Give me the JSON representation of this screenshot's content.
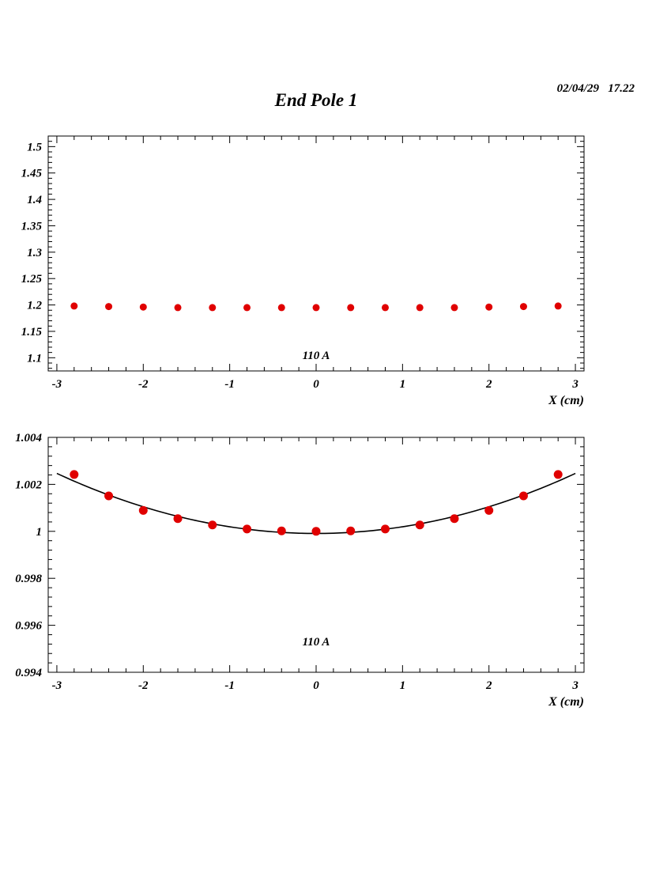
{
  "page": {
    "title": "End Pole 1",
    "timestamp": "02/04/29   17.22"
  },
  "chart_data": [
    {
      "type": "scatter",
      "title": "",
      "xlabel": "X (cm)",
      "ylabel": "",
      "xlim": [
        -3.1,
        3.1
      ],
      "ylim": [
        1.075,
        1.52
      ],
      "xticks": [
        -3,
        -2,
        -1,
        0,
        1,
        2,
        3
      ],
      "xtick_labels": [
        "-3",
        "-2",
        "-1",
        "0",
        "1",
        "2",
        "3"
      ],
      "yticks": [
        1.1,
        1.15,
        1.2,
        1.25,
        1.3,
        1.35,
        1.4,
        1.45,
        1.5
      ],
      "ytick_labels": [
        "1.1",
        "1.15",
        "1.2",
        "1.25",
        "1.3",
        "1.35",
        "1.4",
        "1.45",
        "1.5"
      ],
      "annotation": "110 A",
      "grid": false,
      "series": [
        {
          "color": "#e00000",
          "marker_size": 4.5,
          "x": [
            -2.8,
            -2.4,
            -2.0,
            -1.6,
            -1.2,
            -0.8,
            -0.4,
            0.0,
            0.4,
            0.8,
            1.2,
            1.6,
            2.0,
            2.4,
            2.8
          ],
          "y": [
            1.198,
            1.197,
            1.196,
            1.195,
            1.195,
            1.195,
            1.195,
            1.195,
            1.195,
            1.195,
            1.195,
            1.195,
            1.196,
            1.197,
            1.198
          ]
        }
      ]
    },
    {
      "type": "scatter",
      "title": "",
      "xlabel": "X (cm)",
      "ylabel": "",
      "xlim": [
        -3.1,
        3.1
      ],
      "ylim": [
        0.994,
        1.004
      ],
      "xticks": [
        -3,
        -2,
        -1,
        0,
        1,
        2,
        3
      ],
      "xtick_labels": [
        "-3",
        "-2",
        "-1",
        "0",
        "1",
        "2",
        "3"
      ],
      "yticks": [
        0.994,
        0.996,
        0.998,
        1.0,
        1.002,
        1.004
      ],
      "ytick_labels": [
        "0.994",
        "0.996",
        "0.998",
        "1",
        "1.002",
        "1.004"
      ],
      "annotation": "110 A",
      "grid": false,
      "fit": {
        "type": "parabola",
        "a": 0.000284,
        "c": 0.99991,
        "xmin": -3.0,
        "xmax": 3.0,
        "color": "#000000"
      },
      "series": [
        {
          "color": "#e00000",
          "marker_size": 5.5,
          "x": [
            -2.8,
            -2.4,
            -2.0,
            -1.6,
            -1.2,
            -0.8,
            -0.4,
            0.0,
            0.4,
            0.8,
            1.2,
            1.6,
            2.0,
            2.4,
            2.8
          ],
          "y": [
            1.00242,
            1.00151,
            1.00089,
            1.00054,
            1.00027,
            1.0001,
            1.00002,
            1.0,
            1.00002,
            1.0001,
            1.00027,
            1.00054,
            1.00089,
            1.00151,
            1.00242
          ]
        }
      ]
    }
  ]
}
